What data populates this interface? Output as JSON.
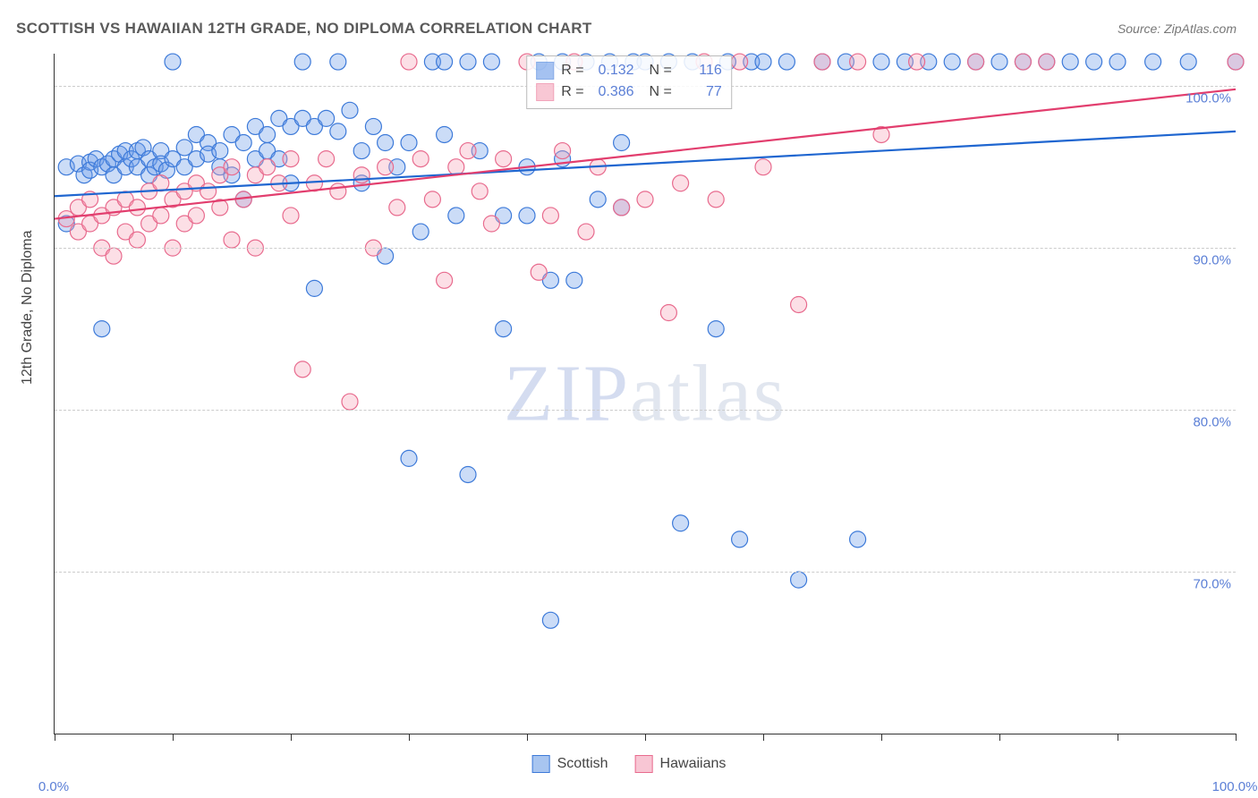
{
  "chart": {
    "type": "scatter-with-regression",
    "title": "SCOTTISH VS HAWAIIAN 12TH GRADE, NO DIPLOMA CORRELATION CHART",
    "source": "Source: ZipAtlas.com",
    "ylabel": "12th Grade, No Diploma",
    "watermark": "ZIPatlas",
    "background_color": "#ffffff",
    "grid_color": "#cccccc",
    "axis_color": "#333333",
    "tick_label_color": "#5b7fd6",
    "title_color": "#5a5a5a",
    "title_fontsize": 17,
    "label_fontsize": 16,
    "tick_fontsize": 15,
    "xlim": [
      0,
      100
    ],
    "ylim": [
      60,
      102
    ],
    "xticks": [
      0,
      10,
      20,
      30,
      40,
      50,
      60,
      70,
      80,
      90,
      100
    ],
    "xtick_labels": {
      "0": "0.0%",
      "100": "100.0%"
    },
    "yticks": [
      70,
      80,
      90,
      100
    ],
    "ytick_labels": {
      "70": "70.0%",
      "80": "80.0%",
      "90": "90.0%",
      "100": "100.0%"
    },
    "marker_radius": 9,
    "marker_stroke_width": 1.2,
    "marker_fill_opacity": 0.35,
    "line_width": 2.2,
    "series": [
      {
        "name": "Scottish",
        "color": "#6a9be8",
        "stroke": "#3d7ad9",
        "line_color": "#1f66d0",
        "R": "0.132",
        "N": "116",
        "regression": {
          "x1": 0,
          "y1": 93.2,
          "x2": 100,
          "y2": 97.2
        },
        "points": [
          [
            1,
            91.5
          ],
          [
            1,
            95
          ],
          [
            2,
            95.2
          ],
          [
            2.5,
            94.5
          ],
          [
            3,
            95.3
          ],
          [
            3,
            94.8
          ],
          [
            3.5,
            95.5
          ],
          [
            4,
            95
          ],
          [
            4,
            85
          ],
          [
            4.5,
            95.2
          ],
          [
            5,
            95.5
          ],
          [
            5,
            94.5
          ],
          [
            5.5,
            95.8
          ],
          [
            6,
            95
          ],
          [
            6,
            96
          ],
          [
            6.5,
            95.5
          ],
          [
            7,
            96
          ],
          [
            7,
            95
          ],
          [
            7.5,
            96.2
          ],
          [
            8,
            95.5
          ],
          [
            8,
            94.5
          ],
          [
            8.5,
            95
          ],
          [
            9,
            96
          ],
          [
            9,
            95.2
          ],
          [
            9.5,
            94.8
          ],
          [
            10,
            95.5
          ],
          [
            10,
            101.5
          ],
          [
            11,
            95
          ],
          [
            11,
            96.2
          ],
          [
            12,
            95.5
          ],
          [
            12,
            97
          ],
          [
            13,
            96.5
          ],
          [
            13,
            95.8
          ],
          [
            14,
            96
          ],
          [
            14,
            95
          ],
          [
            15,
            97
          ],
          [
            15,
            94.5
          ],
          [
            16,
            96.5
          ],
          [
            16,
            93
          ],
          [
            17,
            97.5
          ],
          [
            17,
            95.5
          ],
          [
            18,
            97
          ],
          [
            18,
            96
          ],
          [
            19,
            98
          ],
          [
            19,
            95.5
          ],
          [
            20,
            97.5
          ],
          [
            20,
            94
          ],
          [
            21,
            101.5
          ],
          [
            21,
            98
          ],
          [
            22,
            97.5
          ],
          [
            22,
            87.5
          ],
          [
            23,
            98
          ],
          [
            24,
            97.2
          ],
          [
            24,
            101.5
          ],
          [
            25,
            98.5
          ],
          [
            26,
            96
          ],
          [
            26,
            94
          ],
          [
            27,
            97.5
          ],
          [
            28,
            96.5
          ],
          [
            28,
            89.5
          ],
          [
            29,
            95
          ],
          [
            30,
            96.5
          ],
          [
            30,
            77
          ],
          [
            31,
            91
          ],
          [
            32,
            101.5
          ],
          [
            33,
            97
          ],
          [
            33,
            101.5
          ],
          [
            34,
            92
          ],
          [
            35,
            76
          ],
          [
            35,
            101.5
          ],
          [
            36,
            96
          ],
          [
            37,
            101.5
          ],
          [
            38,
            92
          ],
          [
            38,
            85
          ],
          [
            40,
            95
          ],
          [
            40,
            92
          ],
          [
            41,
            101.5
          ],
          [
            42,
            67
          ],
          [
            42,
            88
          ],
          [
            43,
            95.5
          ],
          [
            43,
            101.5
          ],
          [
            44,
            88
          ],
          [
            45,
            101.5
          ],
          [
            46,
            93
          ],
          [
            47,
            101.5
          ],
          [
            48,
            92.5
          ],
          [
            48,
            96.5
          ],
          [
            49,
            101.5
          ],
          [
            50,
            101.5
          ],
          [
            52,
            101.5
          ],
          [
            53,
            73
          ],
          [
            54,
            101.5
          ],
          [
            56,
            85
          ],
          [
            57,
            101.5
          ],
          [
            58,
            72
          ],
          [
            59,
            101.5
          ],
          [
            60,
            101.5
          ],
          [
            62,
            101.5
          ],
          [
            63,
            69.5
          ],
          [
            65,
            101.5
          ],
          [
            67,
            101.5
          ],
          [
            68,
            72
          ],
          [
            70,
            101.5
          ],
          [
            72,
            101.5
          ],
          [
            74,
            101.5
          ],
          [
            76,
            101.5
          ],
          [
            78,
            101.5
          ],
          [
            80,
            101.5
          ],
          [
            82,
            101.5
          ],
          [
            84,
            101.5
          ],
          [
            86,
            101.5
          ],
          [
            88,
            101.5
          ],
          [
            90,
            101.5
          ],
          [
            93,
            101.5
          ],
          [
            96,
            101.5
          ],
          [
            100,
            101.5
          ]
        ]
      },
      {
        "name": "Hawaiians",
        "color": "#f5a3b8",
        "stroke": "#e86b8e",
        "line_color": "#e23e6e",
        "R": "0.386",
        "N": "77",
        "regression": {
          "x1": 0,
          "y1": 91.8,
          "x2": 100,
          "y2": 99.8
        },
        "points": [
          [
            1,
            91.8
          ],
          [
            2,
            91
          ],
          [
            2,
            92.5
          ],
          [
            3,
            91.5
          ],
          [
            3,
            93
          ],
          [
            4,
            92
          ],
          [
            4,
            90
          ],
          [
            5,
            92.5
          ],
          [
            5,
            89.5
          ],
          [
            6,
            93
          ],
          [
            6,
            91
          ],
          [
            7,
            92.5
          ],
          [
            7,
            90.5
          ],
          [
            8,
            93.5
          ],
          [
            8,
            91.5
          ],
          [
            9,
            92
          ],
          [
            9,
            94
          ],
          [
            10,
            93
          ],
          [
            10,
            90
          ],
          [
            11,
            93.5
          ],
          [
            11,
            91.5
          ],
          [
            12,
            94
          ],
          [
            12,
            92
          ],
          [
            13,
            93.5
          ],
          [
            14,
            94.5
          ],
          [
            14,
            92.5
          ],
          [
            15,
            95
          ],
          [
            15,
            90.5
          ],
          [
            16,
            93
          ],
          [
            17,
            94.5
          ],
          [
            17,
            90
          ],
          [
            18,
            95
          ],
          [
            19,
            94
          ],
          [
            20,
            95.5
          ],
          [
            20,
            92
          ],
          [
            21,
            82.5
          ],
          [
            22,
            94
          ],
          [
            23,
            95.5
          ],
          [
            24,
            93.5
          ],
          [
            25,
            80.5
          ],
          [
            26,
            94.5
          ],
          [
            27,
            90
          ],
          [
            28,
            95
          ],
          [
            29,
            92.5
          ],
          [
            30,
            101.5
          ],
          [
            31,
            95.5
          ],
          [
            32,
            93
          ],
          [
            33,
            88
          ],
          [
            34,
            95
          ],
          [
            35,
            96
          ],
          [
            36,
            93.5
          ],
          [
            37,
            91.5
          ],
          [
            38,
            95.5
          ],
          [
            40,
            101.5
          ],
          [
            41,
            88.5
          ],
          [
            42,
            92
          ],
          [
            43,
            96
          ],
          [
            44,
            101.5
          ],
          [
            45,
            91
          ],
          [
            46,
            95
          ],
          [
            48,
            92.5
          ],
          [
            50,
            93
          ],
          [
            52,
            86
          ],
          [
            53,
            94
          ],
          [
            55,
            101.5
          ],
          [
            56,
            93
          ],
          [
            58,
            101.5
          ],
          [
            60,
            95
          ],
          [
            63,
            86.5
          ],
          [
            65,
            101.5
          ],
          [
            68,
            101.5
          ],
          [
            70,
            97
          ],
          [
            73,
            101.5
          ],
          [
            78,
            101.5
          ],
          [
            82,
            101.5
          ],
          [
            84,
            101.5
          ],
          [
            100,
            101.5
          ]
        ]
      }
    ],
    "legend_bottom": [
      {
        "label": "Scottish",
        "fill": "#a8c5f0",
        "stroke": "#3d7ad9"
      },
      {
        "label": "Hawaiians",
        "fill": "#f8c6d4",
        "stroke": "#e86b8e"
      }
    ]
  }
}
